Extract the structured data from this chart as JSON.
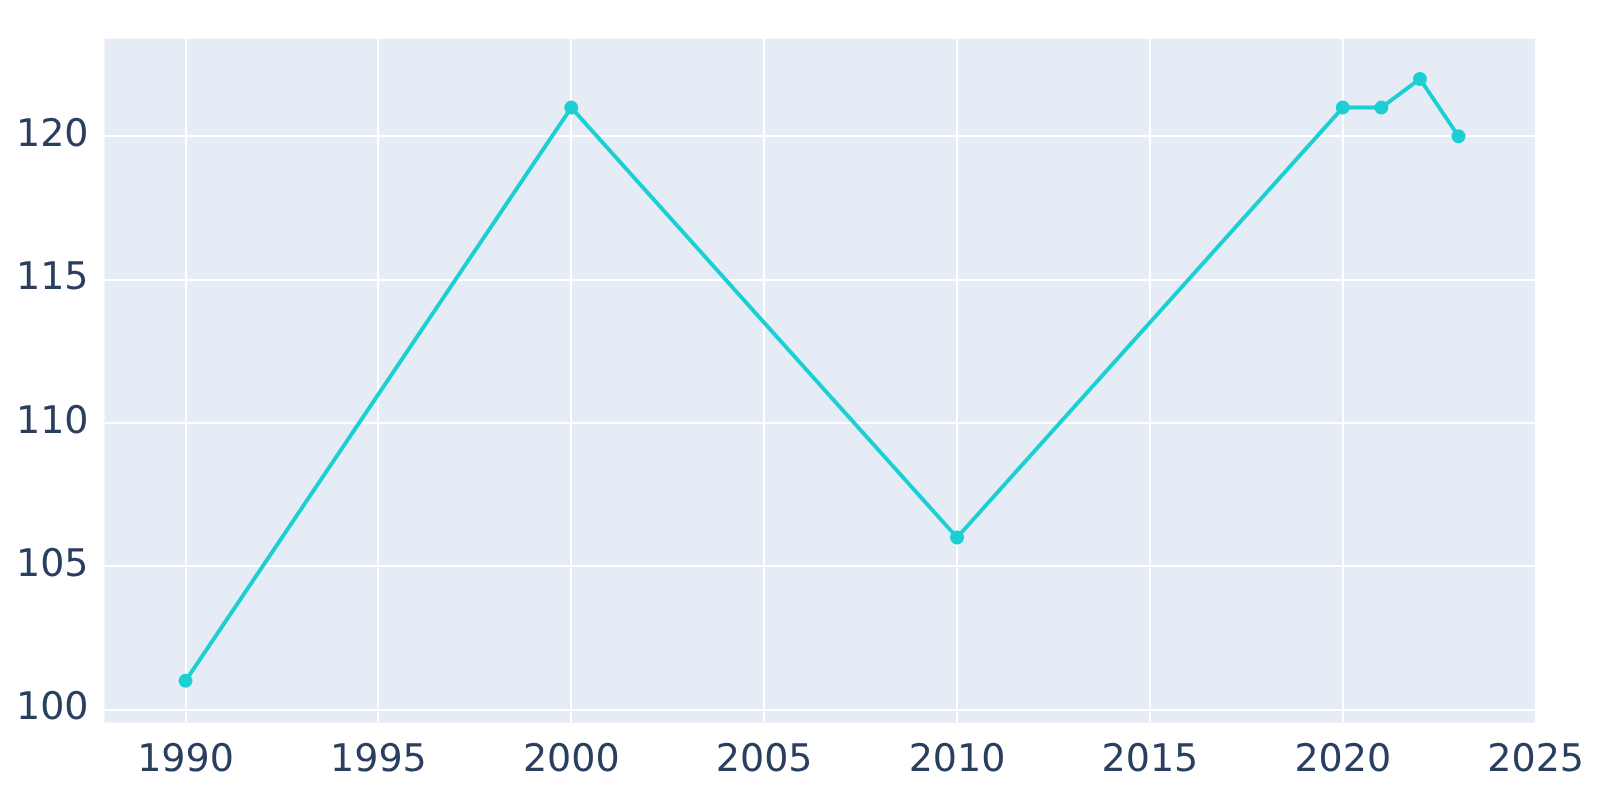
{
  "chart_data": {
    "type": "line",
    "x": [
      1990,
      2000,
      2010,
      2020,
      2021,
      2022,
      2023
    ],
    "series": [
      {
        "color": "#1ccfd3",
        "values": [
          101,
          121,
          106,
          121,
          121,
          122,
          120
        ]
      }
    ],
    "xlim": [
      1987.9,
      2025
    ],
    "xticks": [
      1990,
      1995,
      2000,
      2005,
      2010,
      2015,
      2020,
      2025
    ],
    "ylim": [
      99.55,
      123.4
    ],
    "yticks": [
      100,
      105,
      110,
      115,
      120
    ],
    "grid": true,
    "legend": false,
    "marker": "circle",
    "line_style": "solid"
  }
}
